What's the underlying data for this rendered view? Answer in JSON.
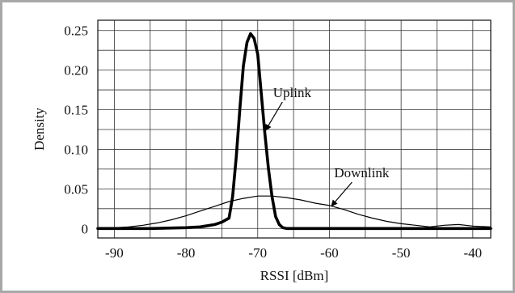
{
  "chart_data": {
    "type": "line",
    "title": "",
    "xlabel": "RSSI [dBm]",
    "ylabel": "Density",
    "xlim": [
      -92.3,
      -37.5
    ],
    "ylim": [
      -0.012,
      0.263
    ],
    "xticks": [
      -90,
      -80,
      -70,
      -60,
      -50,
      -40
    ],
    "xtick_labels": [
      "-90",
      "-80",
      "-70",
      "-60",
      "-50",
      "-40"
    ],
    "xgrid": [
      -90,
      -85,
      -80,
      -75,
      -70,
      -65,
      -60,
      -55,
      -50,
      -45,
      -40
    ],
    "yticks": [
      0,
      0.05,
      0.1,
      0.15,
      0.2,
      0.25
    ],
    "ytick_labels": [
      "0",
      "0.05",
      "0.10",
      "0.15",
      "0.20",
      "0.25"
    ],
    "ygrid": [
      0,
      0.025,
      0.05,
      0.075,
      0.1,
      0.125,
      0.15,
      0.175,
      0.2,
      0.225,
      0.25
    ],
    "grid": true,
    "legend": "none",
    "series": [
      {
        "name": "Uplink",
        "style": "thick",
        "x": [
          -92.3,
          -85,
          -80,
          -78,
          -76,
          -75,
          -74,
          -73.5,
          -73,
          -72.5,
          -72,
          -71.5,
          -71,
          -70.5,
          -70,
          -69.5,
          -69,
          -68.5,
          -68,
          -67.5,
          -67,
          -66.5,
          -66,
          -65.5,
          -65,
          -60,
          -50,
          -37.5
        ],
        "y": [
          0,
          0,
          0.001,
          0.002,
          0.005,
          0.008,
          0.013,
          0.04,
          0.09,
          0.15,
          0.205,
          0.235,
          0.246,
          0.24,
          0.22,
          0.17,
          0.12,
          0.075,
          0.04,
          0.015,
          0.005,
          0.001,
          0,
          0,
          0,
          0,
          0,
          0
        ]
      },
      {
        "name": "Downlink",
        "style": "thin",
        "x": [
          -92.3,
          -90,
          -88,
          -86,
          -84,
          -82,
          -80,
          -78,
          -76,
          -74,
          -72,
          -70,
          -68,
          -66,
          -64,
          -62,
          -60,
          -58,
          -56,
          -54,
          -52,
          -50,
          -48,
          -46,
          -44,
          -42,
          -40,
          -37.5
        ],
        "y": [
          0.0,
          0.001,
          0.002,
          0.004,
          0.007,
          0.011,
          0.016,
          0.022,
          0.028,
          0.034,
          0.038,
          0.041,
          0.041,
          0.039,
          0.036,
          0.032,
          0.029,
          0.024,
          0.018,
          0.013,
          0.009,
          0.006,
          0.004,
          0.002,
          0.004,
          0.005,
          0.003,
          0.002
        ]
      }
    ],
    "annotations": [
      {
        "text": "Uplink",
        "x": -65.2,
        "y": 0.166,
        "arrow_to": [
          -68.9,
          0.124
        ]
      },
      {
        "text": "Downlink",
        "x": -55.5,
        "y": 0.0645,
        "arrow_to": [
          -59.7,
          0.0285
        ]
      }
    ]
  }
}
